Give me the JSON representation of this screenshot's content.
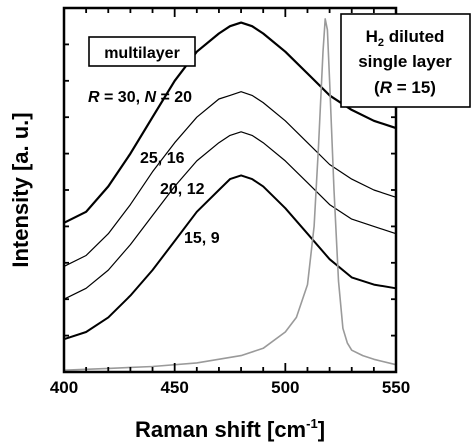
{
  "chart_data": {
    "type": "line",
    "xlabel": "Raman shift [cm",
    "xlabel_sup": "-1",
    "xlabel_tail": "]",
    "ylabel": "Intensity [a. u.]",
    "xlim": [
      400,
      550
    ],
    "ylim": [
      0,
      1
    ],
    "y_ticks_labeled": false,
    "x_ticks": [
      400,
      450,
      500,
      550
    ],
    "grid": false,
    "legend_box": "multilayer",
    "inset_box": {
      "line1_main": "H",
      "line1_sub": "2",
      "line1_rest": " diluted",
      "line2": "single layer",
      "line3_open": "(",
      "line3_var": "R",
      "line3_rest": " = 15)"
    },
    "series": [
      {
        "label_parts": {
          "r": "R",
          "r_eq": " = 30,  ",
          "n": "N",
          "n_eq": " = 20"
        },
        "color": "#000000",
        "width": 2.2,
        "x": [
          400,
          410,
          420,
          430,
          440,
          450,
          460,
          470,
          475,
          480,
          485,
          490,
          500,
          510,
          520,
          530,
          540,
          550
        ],
        "y": [
          0.41,
          0.44,
          0.51,
          0.6,
          0.7,
          0.8,
          0.88,
          0.93,
          0.95,
          0.96,
          0.95,
          0.93,
          0.88,
          0.82,
          0.76,
          0.72,
          0.69,
          0.67
        ]
      },
      {
        "label": "25, 16",
        "color": "#000000",
        "width": 1.2,
        "x": [
          400,
          410,
          420,
          430,
          440,
          450,
          460,
          470,
          475,
          480,
          485,
          490,
          500,
          510,
          520,
          530,
          540,
          550
        ],
        "y": [
          0.29,
          0.32,
          0.38,
          0.46,
          0.55,
          0.63,
          0.7,
          0.75,
          0.76,
          0.77,
          0.76,
          0.74,
          0.69,
          0.63,
          0.57,
          0.53,
          0.5,
          0.48
        ]
      },
      {
        "label": "20, 12",
        "color": "#000000",
        "width": 1.2,
        "x": [
          400,
          410,
          420,
          430,
          440,
          450,
          460,
          470,
          475,
          480,
          485,
          490,
          500,
          510,
          520,
          530,
          540,
          550
        ],
        "y": [
          0.2,
          0.23,
          0.28,
          0.35,
          0.43,
          0.51,
          0.58,
          0.63,
          0.65,
          0.66,
          0.65,
          0.63,
          0.58,
          0.52,
          0.46,
          0.42,
          0.4,
          0.38
        ]
      },
      {
        "label": "15, 9",
        "color": "#000000",
        "width": 2.0,
        "x": [
          400,
          410,
          420,
          430,
          440,
          450,
          460,
          470,
          475,
          480,
          485,
          490,
          500,
          510,
          520,
          530,
          540,
          550
        ],
        "y": [
          0.09,
          0.11,
          0.15,
          0.21,
          0.28,
          0.36,
          0.44,
          0.5,
          0.53,
          0.54,
          0.53,
          0.51,
          0.45,
          0.38,
          0.31,
          0.26,
          0.24,
          0.23
        ]
      },
      {
        "label": "H2 diluted single layer (R = 15)",
        "color": "#9a9a9a",
        "width": 1.6,
        "x": [
          400,
          420,
          440,
          460,
          480,
          490,
          500,
          505,
          510,
          513,
          515,
          517,
          518,
          519,
          520,
          522,
          524,
          526,
          528,
          530,
          535,
          540,
          550
        ],
        "y": [
          0.005,
          0.01,
          0.015,
          0.025,
          0.045,
          0.065,
          0.11,
          0.15,
          0.24,
          0.4,
          0.62,
          0.88,
          0.97,
          0.94,
          0.8,
          0.5,
          0.25,
          0.12,
          0.08,
          0.06,
          0.045,
          0.035,
          0.02
        ]
      }
    ]
  }
}
